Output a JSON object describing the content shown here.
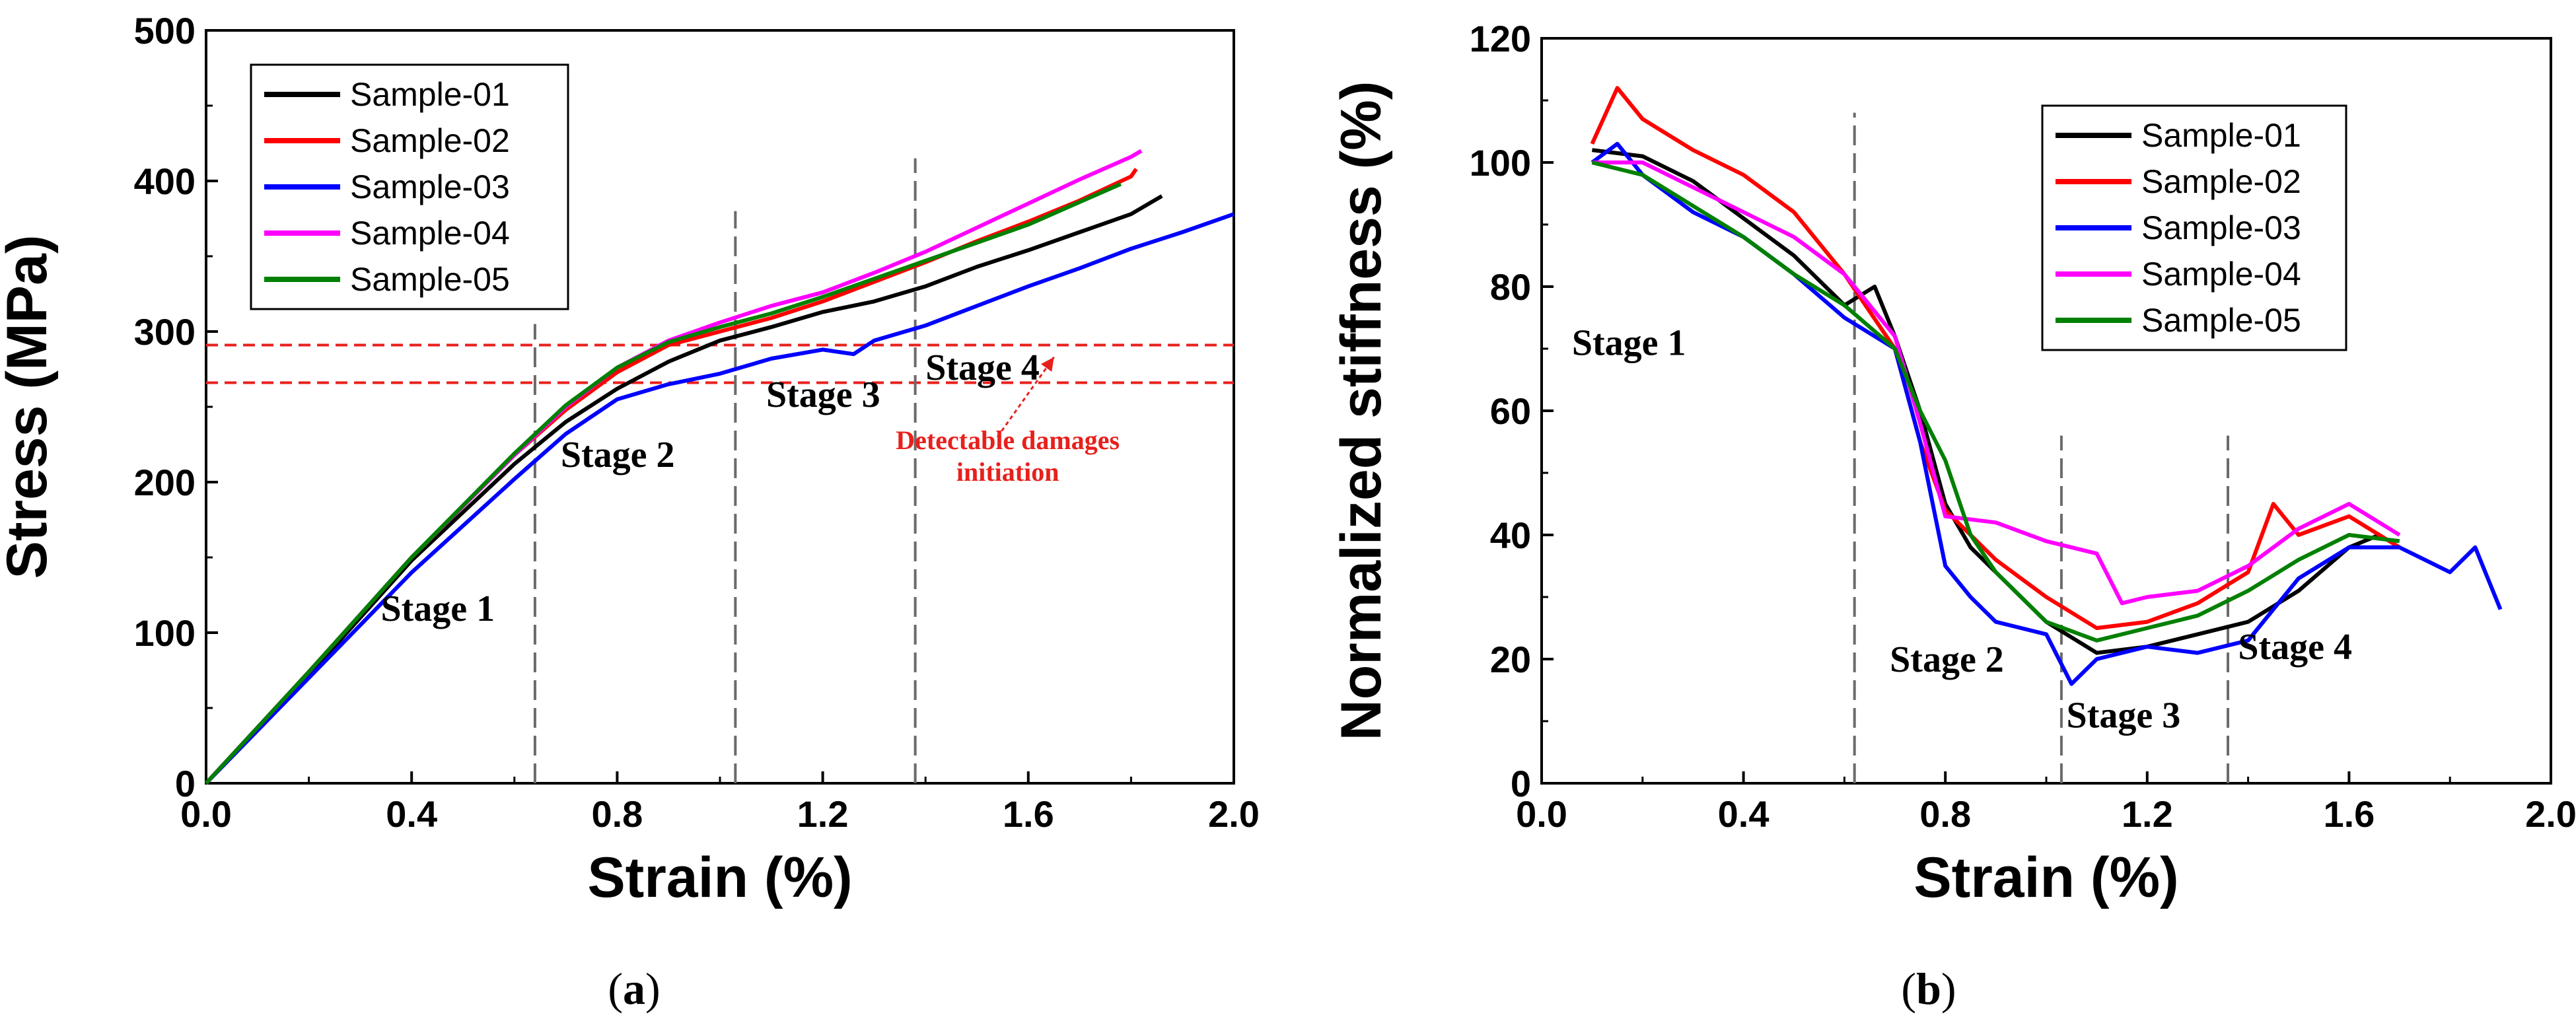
{
  "chart_data": [
    {
      "type": "line",
      "panel": "a",
      "caption_letter": "a",
      "xlabel": "Strain (%)",
      "ylabel": "Stress (MPa)",
      "xlim": [
        0,
        2.0
      ],
      "ylim": [
        0,
        500
      ],
      "xticks": [
        "0.0",
        "0.4",
        "0.8",
        "1.2",
        "1.6",
        "2.0"
      ],
      "yticks": [
        "0",
        "100",
        "200",
        "300",
        "400",
        "500"
      ],
      "legend_position": "top-left",
      "series": [
        {
          "name": "Sample-01",
          "color": "#000000",
          "x": [
            0,
            0.2,
            0.4,
            0.6,
            0.7,
            0.8,
            0.9,
            1.0,
            1.1,
            1.2,
            1.3,
            1.4,
            1.5,
            1.6,
            1.7,
            1.8,
            1.86
          ],
          "y": [
            0,
            72,
            148,
            212,
            240,
            262,
            280,
            294,
            303,
            313,
            320,
            330,
            343,
            354,
            366,
            378,
            390
          ]
        },
        {
          "name": "Sample-02",
          "color": "#ff0000",
          "x": [
            0,
            0.2,
            0.4,
            0.6,
            0.7,
            0.8,
            0.9,
            1.0,
            1.1,
            1.2,
            1.3,
            1.4,
            1.5,
            1.6,
            1.7,
            1.8,
            1.81
          ],
          "y": [
            0,
            74,
            150,
            218,
            248,
            273,
            291,
            300,
            309,
            320,
            333,
            346,
            360,
            373,
            387,
            403,
            408
          ]
        },
        {
          "name": "Sample-03",
          "color": "#0000ff",
          "x": [
            0,
            0.2,
            0.4,
            0.6,
            0.7,
            0.8,
            0.9,
            1.0,
            1.1,
            1.2,
            1.26,
            1.3,
            1.4,
            1.5,
            1.6,
            1.7,
            1.8,
            1.9,
            2.0
          ],
          "y": [
            0,
            70,
            140,
            202,
            232,
            255,
            265,
            272,
            282,
            288,
            285,
            294,
            304,
            317,
            330,
            342,
            355,
            366,
            378
          ]
        },
        {
          "name": "Sample-04",
          "color": "#ff00ff",
          "x": [
            0,
            0.2,
            0.4,
            0.6,
            0.7,
            0.8,
            0.9,
            1.0,
            1.1,
            1.2,
            1.3,
            1.4,
            1.5,
            1.6,
            1.7,
            1.8,
            1.82
          ],
          "y": [
            0,
            74,
            150,
            218,
            250,
            276,
            294,
            306,
            317,
            326,
            339,
            353,
            369,
            385,
            401,
            416,
            420
          ]
        },
        {
          "name": "Sample-05",
          "color": "#008000",
          "x": [
            0,
            0.2,
            0.4,
            0.6,
            0.7,
            0.8,
            0.9,
            1.0,
            1.1,
            1.2,
            1.3,
            1.4,
            1.5,
            1.6,
            1.7,
            1.78
          ],
          "y": [
            0,
            74,
            150,
            219,
            251,
            276,
            293,
            303,
            312,
            323,
            335,
            347,
            359,
            371,
            386,
            398
          ]
        }
      ],
      "vlines": [
        0.64,
        1.03,
        1.38
      ],
      "vline_ranges": [
        [
          0,
          305
        ],
        [
          0,
          380
        ],
        [
          0,
          415
        ]
      ],
      "hlines": [
        266,
        291
      ],
      "hline_color": "#e8201c",
      "stage_labels": [
        {
          "text": "Stage 1",
          "x": 0.34,
          "y": 108
        },
        {
          "text": "Stage 2",
          "x": 0.69,
          "y": 210
        },
        {
          "text": "Stage 3",
          "x": 1.09,
          "y": 250
        },
        {
          "text": "Stage 4",
          "x": 1.4,
          "y": 268
        }
      ],
      "annotation": {
        "lines": [
          "Detectable damages",
          "initiation"
        ],
        "text_x": 1.56,
        "text_y": 222,
        "arrow_from": [
          1.54,
          230
        ],
        "arrow_to": [
          1.65,
          283
        ]
      }
    },
    {
      "type": "line",
      "panel": "b",
      "caption_letter": "b",
      "xlabel": "Strain (%)",
      "ylabel": "Normalized stiffness (%)",
      "xlim": [
        0,
        2.0
      ],
      "ylim": [
        0,
        120
      ],
      "xticks": [
        "0.0",
        "0.4",
        "0.8",
        "1.2",
        "1.6",
        "2.0"
      ],
      "yticks": [
        "0",
        "20",
        "40",
        "60",
        "80",
        "100",
        "120"
      ],
      "legend_position": "top-right",
      "series": [
        {
          "name": "Sample-01",
          "color": "#000000",
          "x": [
            0.1,
            0.2,
            0.3,
            0.4,
            0.5,
            0.6,
            0.66,
            0.7,
            0.75,
            0.8,
            0.85,
            0.9,
            1.0,
            1.1,
            1.2,
            1.3,
            1.4,
            1.5,
            1.6,
            1.66
          ],
          "y": [
            102,
            101,
            97,
            91,
            85,
            77,
            80,
            72,
            60,
            45,
            38,
            34,
            26,
            21,
            22,
            24,
            26,
            31,
            38,
            40
          ]
        },
        {
          "name": "Sample-02",
          "color": "#ff0000",
          "x": [
            0.1,
            0.15,
            0.2,
            0.3,
            0.4,
            0.5,
            0.6,
            0.65,
            0.7,
            0.75,
            0.8,
            0.9,
            1.0,
            1.1,
            1.2,
            1.3,
            1.4,
            1.45,
            1.5,
            1.6,
            1.7
          ],
          "y": [
            103,
            112,
            107,
            102,
            98,
            92,
            82,
            76,
            70,
            55,
            44,
            36,
            30,
            25,
            26,
            29,
            34,
            45,
            40,
            43,
            38
          ]
        },
        {
          "name": "Sample-03",
          "color": "#0000ff",
          "x": [
            0.1,
            0.15,
            0.2,
            0.3,
            0.4,
            0.5,
            0.6,
            0.7,
            0.75,
            0.8,
            0.85,
            0.9,
            1.0,
            1.05,
            1.1,
            1.2,
            1.3,
            1.4,
            1.5,
            1.6,
            1.7,
            1.8,
            1.85,
            1.9
          ],
          "y": [
            100,
            103,
            98,
            92,
            88,
            82,
            75,
            70,
            55,
            35,
            30,
            26,
            24,
            16,
            20,
            22,
            21,
            23,
            33,
            38,
            38,
            34,
            38,
            28
          ]
        },
        {
          "name": "Sample-04",
          "color": "#ff00ff",
          "x": [
            0.1,
            0.2,
            0.3,
            0.4,
            0.5,
            0.6,
            0.7,
            0.75,
            0.8,
            0.9,
            1.0,
            1.1,
            1.15,
            1.2,
            1.3,
            1.4,
            1.5,
            1.6,
            1.7
          ],
          "y": [
            100,
            100,
            96,
            92,
            88,
            82,
            72,
            58,
            43,
            42,
            39,
            37,
            29,
            30,
            31,
            35,
            41,
            45,
            40
          ]
        },
        {
          "name": "Sample-05",
          "color": "#008000",
          "x": [
            0.1,
            0.2,
            0.3,
            0.4,
            0.5,
            0.6,
            0.7,
            0.75,
            0.8,
            0.85,
            0.9,
            1.0,
            1.1,
            1.2,
            1.3,
            1.4,
            1.5,
            1.6,
            1.7
          ],
          "y": [
            100,
            98,
            93,
            88,
            82,
            77,
            70,
            60,
            52,
            40,
            34,
            26,
            23,
            25,
            27,
            31,
            36,
            40,
            39
          ]
        }
      ],
      "vlines": [
        0.62,
        1.03,
        1.36
      ],
      "vline_ranges": [
        [
          0,
          108
        ],
        [
          0,
          56
        ],
        [
          0,
          56
        ]
      ],
      "stage_labels": [
        {
          "text": "Stage 1",
          "x": 0.06,
          "y": 69
        },
        {
          "text": "Stage 2",
          "x": 0.69,
          "y": 18
        },
        {
          "text": "Stage 3",
          "x": 1.04,
          "y": 9
        },
        {
          "text": "Stage 4",
          "x": 1.38,
          "y": 20
        }
      ]
    }
  ]
}
